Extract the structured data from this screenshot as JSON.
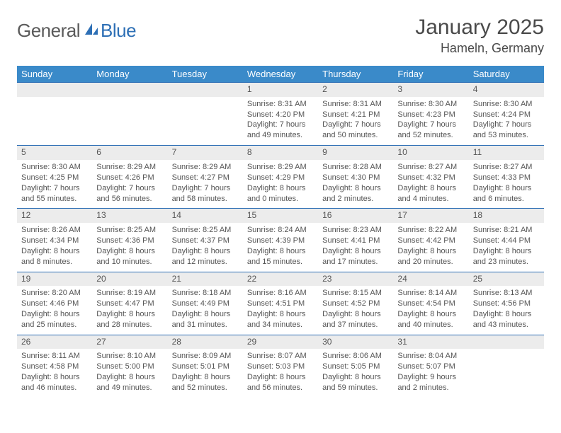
{
  "brand": {
    "part1": "General",
    "part2": "Blue"
  },
  "title": "January 2025",
  "location": "Hameln, Germany",
  "colors": {
    "header_bg": "#3a8ac9",
    "rule": "#2d6fb5",
    "daynum_bg": "#ececec",
    "text": "#4a4a4a",
    "body_text": "#555555",
    "bg": "#ffffff"
  },
  "fonts": {
    "title_pt": 30,
    "location_pt": 18,
    "th_pt": 13,
    "daynum_pt": 12,
    "body_pt": 11
  },
  "day_headers": [
    "Sunday",
    "Monday",
    "Tuesday",
    "Wednesday",
    "Thursday",
    "Friday",
    "Saturday"
  ],
  "weeks": [
    [
      null,
      null,
      null,
      {
        "n": "1",
        "sr": "Sunrise: 8:31 AM",
        "ss": "Sunset: 4:20 PM",
        "d1": "Daylight: 7 hours",
        "d2": "and 49 minutes."
      },
      {
        "n": "2",
        "sr": "Sunrise: 8:31 AM",
        "ss": "Sunset: 4:21 PM",
        "d1": "Daylight: 7 hours",
        "d2": "and 50 minutes."
      },
      {
        "n": "3",
        "sr": "Sunrise: 8:30 AM",
        "ss": "Sunset: 4:23 PM",
        "d1": "Daylight: 7 hours",
        "d2": "and 52 minutes."
      },
      {
        "n": "4",
        "sr": "Sunrise: 8:30 AM",
        "ss": "Sunset: 4:24 PM",
        "d1": "Daylight: 7 hours",
        "d2": "and 53 minutes."
      }
    ],
    [
      {
        "n": "5",
        "sr": "Sunrise: 8:30 AM",
        "ss": "Sunset: 4:25 PM",
        "d1": "Daylight: 7 hours",
        "d2": "and 55 minutes."
      },
      {
        "n": "6",
        "sr": "Sunrise: 8:29 AM",
        "ss": "Sunset: 4:26 PM",
        "d1": "Daylight: 7 hours",
        "d2": "and 56 minutes."
      },
      {
        "n": "7",
        "sr": "Sunrise: 8:29 AM",
        "ss": "Sunset: 4:27 PM",
        "d1": "Daylight: 7 hours",
        "d2": "and 58 minutes."
      },
      {
        "n": "8",
        "sr": "Sunrise: 8:29 AM",
        "ss": "Sunset: 4:29 PM",
        "d1": "Daylight: 8 hours",
        "d2": "and 0 minutes."
      },
      {
        "n": "9",
        "sr": "Sunrise: 8:28 AM",
        "ss": "Sunset: 4:30 PM",
        "d1": "Daylight: 8 hours",
        "d2": "and 2 minutes."
      },
      {
        "n": "10",
        "sr": "Sunrise: 8:27 AM",
        "ss": "Sunset: 4:32 PM",
        "d1": "Daylight: 8 hours",
        "d2": "and 4 minutes."
      },
      {
        "n": "11",
        "sr": "Sunrise: 8:27 AM",
        "ss": "Sunset: 4:33 PM",
        "d1": "Daylight: 8 hours",
        "d2": "and 6 minutes."
      }
    ],
    [
      {
        "n": "12",
        "sr": "Sunrise: 8:26 AM",
        "ss": "Sunset: 4:34 PM",
        "d1": "Daylight: 8 hours",
        "d2": "and 8 minutes."
      },
      {
        "n": "13",
        "sr": "Sunrise: 8:25 AM",
        "ss": "Sunset: 4:36 PM",
        "d1": "Daylight: 8 hours",
        "d2": "and 10 minutes."
      },
      {
        "n": "14",
        "sr": "Sunrise: 8:25 AM",
        "ss": "Sunset: 4:37 PM",
        "d1": "Daylight: 8 hours",
        "d2": "and 12 minutes."
      },
      {
        "n": "15",
        "sr": "Sunrise: 8:24 AM",
        "ss": "Sunset: 4:39 PM",
        "d1": "Daylight: 8 hours",
        "d2": "and 15 minutes."
      },
      {
        "n": "16",
        "sr": "Sunrise: 8:23 AM",
        "ss": "Sunset: 4:41 PM",
        "d1": "Daylight: 8 hours",
        "d2": "and 17 minutes."
      },
      {
        "n": "17",
        "sr": "Sunrise: 8:22 AM",
        "ss": "Sunset: 4:42 PM",
        "d1": "Daylight: 8 hours",
        "d2": "and 20 minutes."
      },
      {
        "n": "18",
        "sr": "Sunrise: 8:21 AM",
        "ss": "Sunset: 4:44 PM",
        "d1": "Daylight: 8 hours",
        "d2": "and 23 minutes."
      }
    ],
    [
      {
        "n": "19",
        "sr": "Sunrise: 8:20 AM",
        "ss": "Sunset: 4:46 PM",
        "d1": "Daylight: 8 hours",
        "d2": "and 25 minutes."
      },
      {
        "n": "20",
        "sr": "Sunrise: 8:19 AM",
        "ss": "Sunset: 4:47 PM",
        "d1": "Daylight: 8 hours",
        "d2": "and 28 minutes."
      },
      {
        "n": "21",
        "sr": "Sunrise: 8:18 AM",
        "ss": "Sunset: 4:49 PM",
        "d1": "Daylight: 8 hours",
        "d2": "and 31 minutes."
      },
      {
        "n": "22",
        "sr": "Sunrise: 8:16 AM",
        "ss": "Sunset: 4:51 PM",
        "d1": "Daylight: 8 hours",
        "d2": "and 34 minutes."
      },
      {
        "n": "23",
        "sr": "Sunrise: 8:15 AM",
        "ss": "Sunset: 4:52 PM",
        "d1": "Daylight: 8 hours",
        "d2": "and 37 minutes."
      },
      {
        "n": "24",
        "sr": "Sunrise: 8:14 AM",
        "ss": "Sunset: 4:54 PM",
        "d1": "Daylight: 8 hours",
        "d2": "and 40 minutes."
      },
      {
        "n": "25",
        "sr": "Sunrise: 8:13 AM",
        "ss": "Sunset: 4:56 PM",
        "d1": "Daylight: 8 hours",
        "d2": "and 43 minutes."
      }
    ],
    [
      {
        "n": "26",
        "sr": "Sunrise: 8:11 AM",
        "ss": "Sunset: 4:58 PM",
        "d1": "Daylight: 8 hours",
        "d2": "and 46 minutes."
      },
      {
        "n": "27",
        "sr": "Sunrise: 8:10 AM",
        "ss": "Sunset: 5:00 PM",
        "d1": "Daylight: 8 hours",
        "d2": "and 49 minutes."
      },
      {
        "n": "28",
        "sr": "Sunrise: 8:09 AM",
        "ss": "Sunset: 5:01 PM",
        "d1": "Daylight: 8 hours",
        "d2": "and 52 minutes."
      },
      {
        "n": "29",
        "sr": "Sunrise: 8:07 AM",
        "ss": "Sunset: 5:03 PM",
        "d1": "Daylight: 8 hours",
        "d2": "and 56 minutes."
      },
      {
        "n": "30",
        "sr": "Sunrise: 8:06 AM",
        "ss": "Sunset: 5:05 PM",
        "d1": "Daylight: 8 hours",
        "d2": "and 59 minutes."
      },
      {
        "n": "31",
        "sr": "Sunrise: 8:04 AM",
        "ss": "Sunset: 5:07 PM",
        "d1": "Daylight: 9 hours",
        "d2": "and 2 minutes."
      },
      null
    ]
  ]
}
